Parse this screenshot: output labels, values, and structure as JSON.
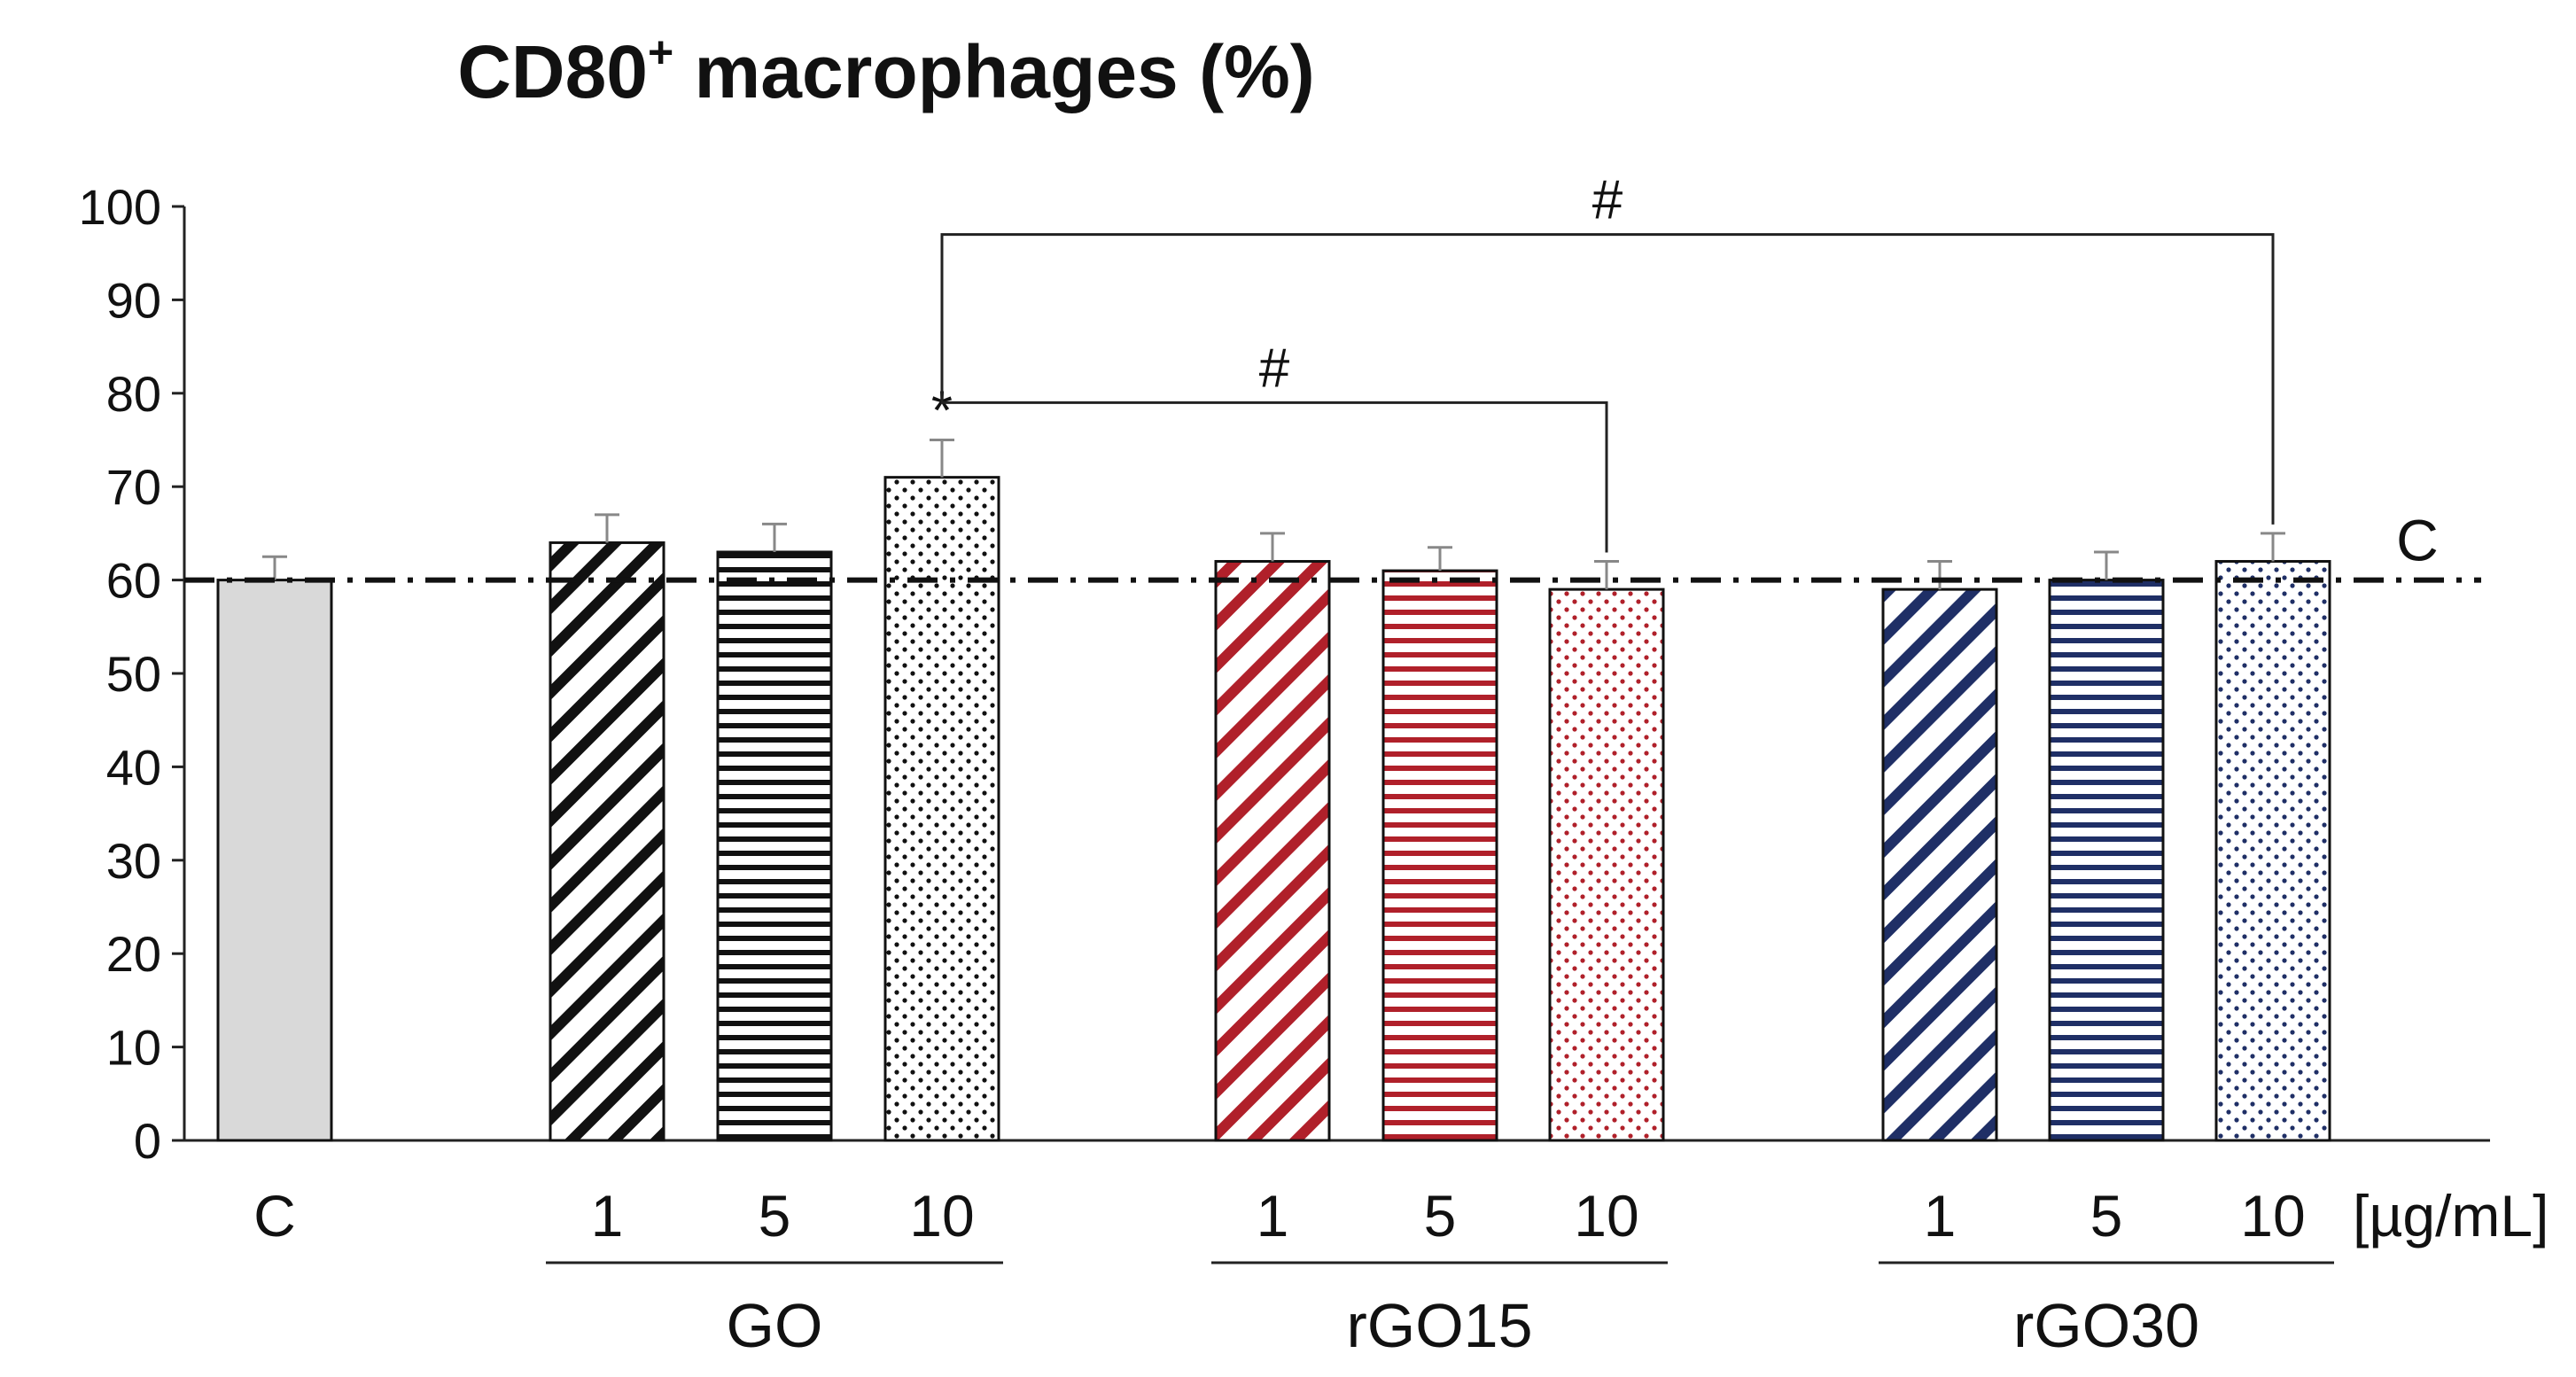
{
  "chart_data": {
    "type": "bar",
    "title": "CD80",
    "title_sup": "+",
    "title_rest": " macrophages (%)",
    "ylim": [
      0,
      100
    ],
    "yticks": [
      0,
      10,
      20,
      30,
      40,
      50,
      60,
      70,
      80,
      90,
      100
    ],
    "unit_label": "[µg/mL]",
    "control_line": {
      "value": 60,
      "label": "C"
    },
    "bars": [
      {
        "label": "C",
        "group": "",
        "value": 60,
        "error": 2.5,
        "pattern": "solid",
        "color": "#d9d9d9"
      },
      {
        "label": "1",
        "group": "GO",
        "value": 64,
        "error": 3,
        "pattern": "diagonal",
        "color": "#111111"
      },
      {
        "label": "5",
        "group": "GO",
        "value": 63,
        "error": 3,
        "pattern": "horizontal",
        "color": "#111111"
      },
      {
        "label": "10",
        "group": "GO",
        "value": 71,
        "error": 4,
        "pattern": "dots",
        "color": "#111111",
        "annotation": "*"
      },
      {
        "label": "1",
        "group": "rGO15",
        "value": 62,
        "error": 3,
        "pattern": "diagonal",
        "color": "#b0202a"
      },
      {
        "label": "5",
        "group": "rGO15",
        "value": 61,
        "error": 2.5,
        "pattern": "horizontal",
        "color": "#b0202a"
      },
      {
        "label": "10",
        "group": "rGO15",
        "value": 59,
        "error": 3,
        "pattern": "dots",
        "color": "#b0202a"
      },
      {
        "label": "1",
        "group": "rGO30",
        "value": 59,
        "error": 3,
        "pattern": "diagonal",
        "color": "#1f2f66"
      },
      {
        "label": "5",
        "group": "rGO30",
        "value": 60,
        "error": 3,
        "pattern": "horizontal",
        "color": "#1f2f66"
      },
      {
        "label": "10",
        "group": "rGO30",
        "value": 62,
        "error": 3,
        "pattern": "dots",
        "color": "#1f2f66"
      }
    ],
    "groups": [
      "GO",
      "rGO15",
      "rGO30"
    ],
    "comparisons": [
      {
        "from": 3,
        "to": 6,
        "label": "#",
        "level": 79
      },
      {
        "from": 3,
        "to": 9,
        "label": "#",
        "level": 97
      }
    ]
  }
}
